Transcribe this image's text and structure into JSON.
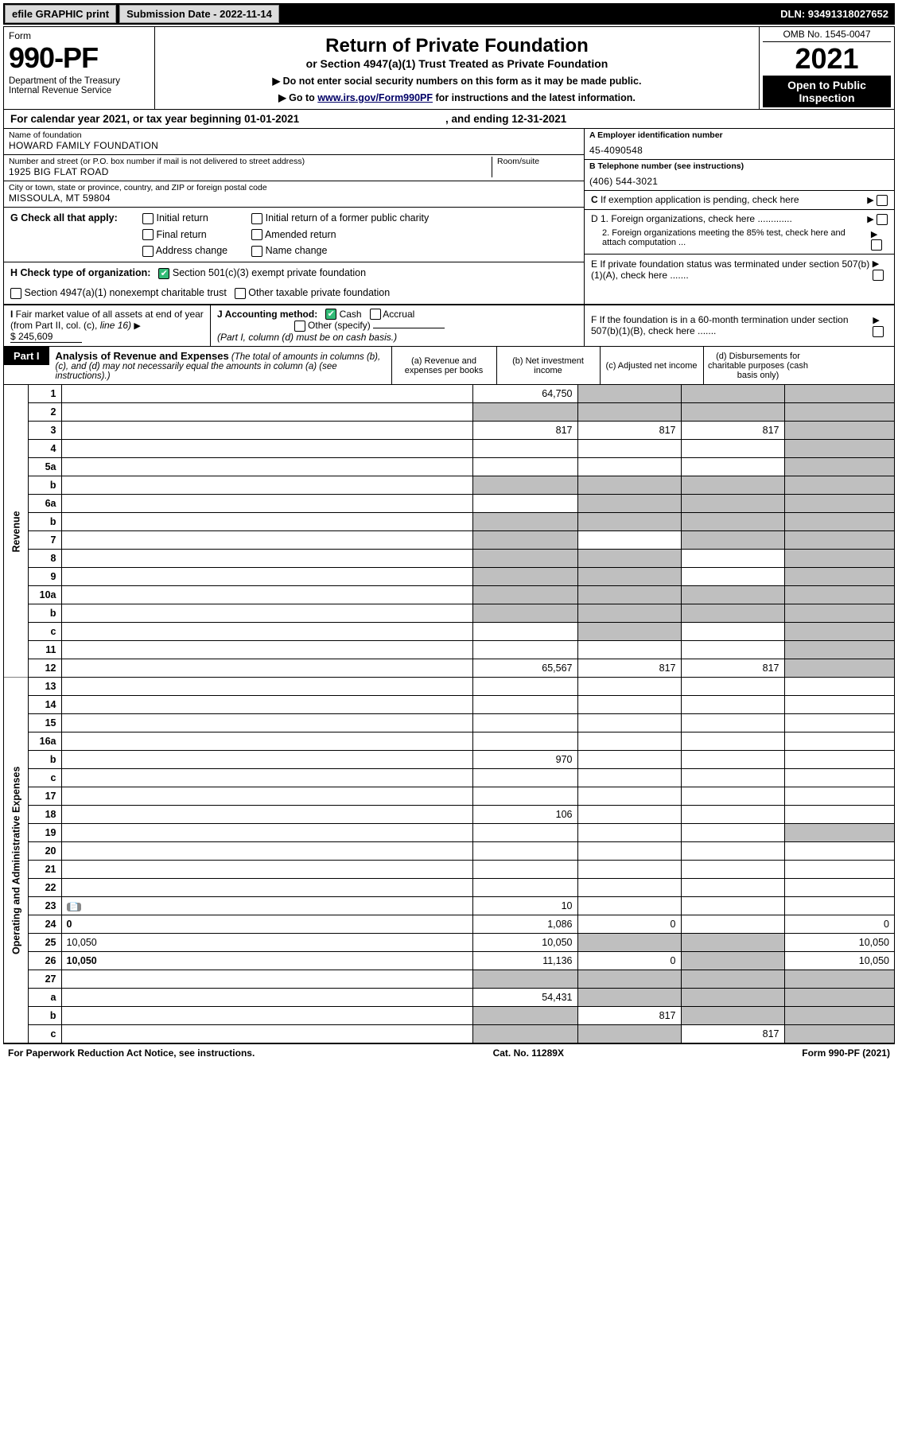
{
  "topbar": {
    "efile_btn": "efile GRAPHIC print",
    "submission": "Submission Date - 2022-11-14",
    "dln": "DLN: 93491318027652"
  },
  "header": {
    "form_line": "Form",
    "form_no": "990-PF",
    "dept": "Department of the Treasury",
    "irs": "Internal Revenue Service",
    "title": "Return of Private Foundation",
    "subtitle": "or Section 4947(a)(1) Trust Treated as Private Foundation",
    "note1": "▶ Do not enter social security numbers on this form as it may be made public.",
    "note2": "▶ Go to www.irs.gov/Form990PF for instructions and the latest information.",
    "omb": "OMB No. 1545-0047",
    "year": "2021",
    "open": "Open to Public Inspection"
  },
  "calyear": {
    "text_pre": "For calendar year 2021, or tax year beginning ",
    "begin": "01-01-2021",
    "text_mid": " , and ending ",
    "end": "12-31-2021"
  },
  "name": {
    "lbl": "Name of foundation",
    "val": "HOWARD FAMILY FOUNDATION"
  },
  "ein": {
    "lbl": "A Employer identification number",
    "val": "45-4090548"
  },
  "addr": {
    "lbl": "Number and street (or P.O. box number if mail is not delivered to street address)",
    "val": "1925 BIG FLAT ROAD",
    "room_lbl": "Room/suite"
  },
  "tel": {
    "lbl": "B Telephone number (see instructions)",
    "val": "(406) 544-3021"
  },
  "city": {
    "lbl": "City or town, state or province, country, and ZIP or foreign postal code",
    "val": "MISSOULA, MT  59804"
  },
  "c_pending": "C If exemption application is pending, check here",
  "g": {
    "lbl": "G Check all that apply:",
    "opts": [
      "Initial return",
      "Final return",
      "Address change",
      "Initial return of a former public charity",
      "Amended return",
      "Name change"
    ]
  },
  "d": {
    "d1": "D 1. Foreign organizations, check here .............",
    "d2": "2. Foreign organizations meeting the 85% test, check here and attach computation ..."
  },
  "h": {
    "lbl": "H Check type of organization:",
    "o1": "Section 501(c)(3) exempt private foundation",
    "o2": "Section 4947(a)(1) nonexempt charitable trust",
    "o3": "Other taxable private foundation"
  },
  "e": "E If private foundation status was terminated under section 507(b)(1)(A), check here .......",
  "i": {
    "lbl": "I Fair market value of all assets at end of year (from Part II, col. (c), line 16)",
    "val": "$  245,609"
  },
  "j": {
    "lbl": "J Accounting method:",
    "cash": "Cash",
    "accrual": "Accrual",
    "other": "Other (specify)",
    "note": "(Part I, column (d) must be on cash basis.)"
  },
  "f": "F If the foundation is in a 60-month termination under section 507(b)(1)(B), check here .......",
  "part1": {
    "tag": "Part I",
    "title": "Analysis of Revenue and Expenses",
    "paren": "(The total of amounts in columns (b), (c), and (d) may not necessarily equal the amounts in column (a) (see instructions).)",
    "cols": {
      "a": "(a) Revenue and expenses per books",
      "b": "(b) Net investment income",
      "c": "(c) Adjusted net income",
      "d": "(d) Disbursements for charitable purposes (cash basis only)"
    }
  },
  "rev_label": "Revenue",
  "exp_label": "Operating and Administrative Expenses",
  "rows": [
    {
      "n": "1",
      "d": "",
      "a": "64,750",
      "b": "",
      "c": "",
      "shade": [
        "b",
        "c",
        "d"
      ]
    },
    {
      "n": "2",
      "d": "",
      "a": "",
      "b": "",
      "c": "",
      "shade": [
        "a",
        "b",
        "c",
        "d"
      ]
    },
    {
      "n": "3",
      "d": "",
      "a": "817",
      "b": "817",
      "c": "817",
      "shade": [
        "d"
      ]
    },
    {
      "n": "4",
      "d": "",
      "a": "",
      "b": "",
      "c": "",
      "shade": [
        "d"
      ]
    },
    {
      "n": "5a",
      "d": "",
      "a": "",
      "b": "",
      "c": "",
      "shade": [
        "d"
      ]
    },
    {
      "n": "b",
      "d": "",
      "a": "",
      "b": "",
      "c": "",
      "shade": [
        "a",
        "b",
        "c",
        "d"
      ]
    },
    {
      "n": "6a",
      "d": "",
      "a": "",
      "b": "",
      "c": "",
      "shade": [
        "b",
        "c",
        "d"
      ]
    },
    {
      "n": "b",
      "d": "",
      "a": "",
      "b": "",
      "c": "",
      "shade": [
        "a",
        "b",
        "c",
        "d"
      ]
    },
    {
      "n": "7",
      "d": "",
      "a": "",
      "b": "",
      "c": "",
      "shade": [
        "a",
        "c",
        "d"
      ]
    },
    {
      "n": "8",
      "d": "",
      "a": "",
      "b": "",
      "c": "",
      "shade": [
        "a",
        "b",
        "d"
      ]
    },
    {
      "n": "9",
      "d": "",
      "a": "",
      "b": "",
      "c": "",
      "shade": [
        "a",
        "b",
        "d"
      ]
    },
    {
      "n": "10a",
      "d": "",
      "a": "",
      "b": "",
      "c": "",
      "shade": [
        "a",
        "b",
        "c",
        "d"
      ]
    },
    {
      "n": "b",
      "d": "",
      "a": "",
      "b": "",
      "c": "",
      "shade": [
        "a",
        "b",
        "c",
        "d"
      ]
    },
    {
      "n": "c",
      "d": "",
      "a": "",
      "b": "",
      "c": "",
      "shade": [
        "b",
        "d"
      ]
    },
    {
      "n": "11",
      "d": "",
      "a": "",
      "b": "",
      "c": "",
      "shade": [
        "d"
      ]
    },
    {
      "n": "12",
      "d": "",
      "a": "65,567",
      "b": "817",
      "c": "817",
      "shade": [
        "d"
      ],
      "bold": true
    }
  ],
  "exp_rows": [
    {
      "n": "13",
      "d": "",
      "a": "",
      "b": "",
      "c": ""
    },
    {
      "n": "14",
      "d": "",
      "a": "",
      "b": "",
      "c": ""
    },
    {
      "n": "15",
      "d": "",
      "a": "",
      "b": "",
      "c": ""
    },
    {
      "n": "16a",
      "d": "",
      "a": "",
      "b": "",
      "c": ""
    },
    {
      "n": "b",
      "d": "",
      "a": "970",
      "b": "",
      "c": ""
    },
    {
      "n": "c",
      "d": "",
      "a": "",
      "b": "",
      "c": ""
    },
    {
      "n": "17",
      "d": "",
      "a": "",
      "b": "",
      "c": ""
    },
    {
      "n": "18",
      "d": "",
      "a": "106",
      "b": "",
      "c": ""
    },
    {
      "n": "19",
      "d": "",
      "a": "",
      "b": "",
      "c": "",
      "shade": [
        "d"
      ]
    },
    {
      "n": "20",
      "d": "",
      "a": "",
      "b": "",
      "c": ""
    },
    {
      "n": "21",
      "d": "",
      "a": "",
      "b": "",
      "c": ""
    },
    {
      "n": "22",
      "d": "",
      "a": "",
      "b": "",
      "c": ""
    },
    {
      "n": "23",
      "d": "",
      "a": "10",
      "b": "",
      "c": "",
      "icon": true
    },
    {
      "n": "24",
      "d": "0",
      "a": "1,086",
      "b": "0",
      "c": "",
      "bold": true
    },
    {
      "n": "25",
      "d": "10,050",
      "a": "10,050",
      "b": "",
      "c": "",
      "shade": [
        "b",
        "c"
      ]
    },
    {
      "n": "26",
      "d": "10,050",
      "a": "11,136",
      "b": "0",
      "c": "",
      "bold": true,
      "shade": [
        "c"
      ]
    },
    {
      "n": "27",
      "d": "",
      "a": "",
      "b": "",
      "c": "",
      "shade": [
        "a",
        "b",
        "c",
        "d"
      ]
    },
    {
      "n": "a",
      "d": "",
      "a": "54,431",
      "b": "",
      "c": "",
      "bold": true,
      "shade": [
        "b",
        "c",
        "d"
      ]
    },
    {
      "n": "b",
      "d": "",
      "a": "",
      "b": "817",
      "c": "",
      "bold": true,
      "shade": [
        "a",
        "c",
        "d"
      ]
    },
    {
      "n": "c",
      "d": "",
      "a": "",
      "b": "",
      "c": "817",
      "bold": true,
      "shade": [
        "a",
        "b",
        "d"
      ]
    }
  ],
  "footer": {
    "left": "For Paperwork Reduction Act Notice, see instructions.",
    "mid": "Cat. No. 11289X",
    "right": "Form 990-PF (2021)"
  }
}
